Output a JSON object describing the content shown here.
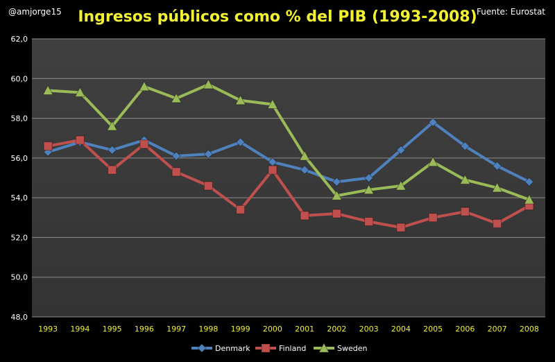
{
  "header": {
    "handle": "@amjorge15",
    "source": "Fuente: Eurostat"
  },
  "colors": {
    "background": "#000000",
    "plot_area": "#3a3a3a",
    "grid": "#8c8c8c",
    "axis_text": "#ffffff",
    "x_tick_text": "#f2f230",
    "title": "#f2f230"
  },
  "chart_data": {
    "type": "line",
    "title": "Ingresos públicos como % del PIB (1993-2008)",
    "xlabel": "",
    "ylabel": "",
    "categories": [
      "1993",
      "1994",
      "1995",
      "1996",
      "1997",
      "1998",
      "1999",
      "2000",
      "2001",
      "2002",
      "2003",
      "2004",
      "2005",
      "2006",
      "2007",
      "2008"
    ],
    "ylim": [
      48,
      62
    ],
    "yticks": [
      "48,0",
      "50,0",
      "52,0",
      "54,0",
      "56,0",
      "58,0",
      "60,0",
      "62,0"
    ],
    "ytick_values": [
      48,
      50,
      52,
      54,
      56,
      58,
      60,
      62
    ],
    "grid": true,
    "legend_position": "bottom",
    "series": [
      {
        "name": "Denmark",
        "color": "#4f81bd",
        "marker": "diamond",
        "values": [
          56.3,
          56.8,
          56.4,
          56.9,
          56.1,
          56.2,
          56.8,
          55.8,
          55.4,
          54.8,
          55.0,
          56.4,
          57.8,
          56.6,
          55.6,
          54.8
        ]
      },
      {
        "name": "Finland",
        "color": "#c0504d",
        "marker": "square",
        "values": [
          56.6,
          56.9,
          55.4,
          56.7,
          55.3,
          54.6,
          53.4,
          55.4,
          53.1,
          53.2,
          52.8,
          52.5,
          53.0,
          53.3,
          52.7,
          53.6
        ]
      },
      {
        "name": "Sweden",
        "color": "#9bbb59",
        "marker": "triangle",
        "values": [
          59.4,
          59.3,
          57.6,
          59.6,
          59.0,
          59.7,
          58.9,
          58.7,
          56.1,
          54.1,
          54.4,
          54.6,
          55.8,
          54.9,
          54.5,
          53.9
        ]
      }
    ]
  }
}
